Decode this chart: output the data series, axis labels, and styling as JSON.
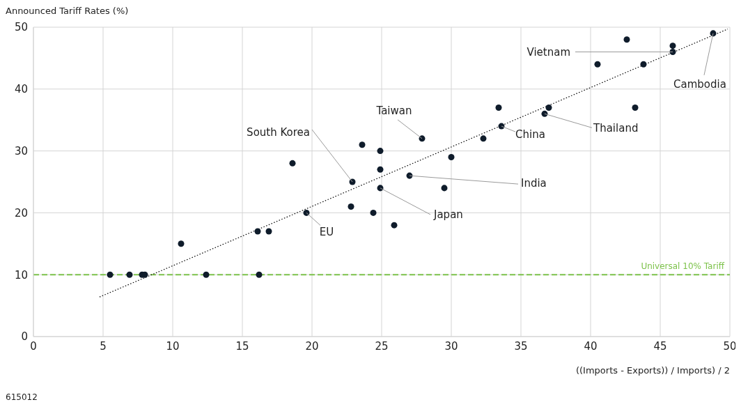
{
  "chart_data": {
    "type": "scatter",
    "title": "Announced Tariff Rates (%)",
    "xlabel": "((Imports - Exports)) / Imports) / 2",
    "xlim": [
      0,
      50
    ],
    "xticks": [
      0,
      5,
      10,
      15,
      20,
      25,
      30,
      35,
      40,
      45,
      50
    ],
    "ylim": [
      0,
      50
    ],
    "yticks": [
      0,
      10,
      20,
      30,
      40,
      50
    ],
    "grid": true,
    "marker": "circle",
    "series": [
      {
        "color": "#0f1c2b",
        "x": [
          5.5,
          6.9,
          7.8,
          8,
          10.6,
          12.4,
          16.1,
          16.9,
          16.2,
          18.6,
          19.6,
          22.8,
          22.9,
          23.6,
          24.4,
          24.9,
          24.9,
          24.9,
          25.9,
          27,
          27.9,
          29.5,
          30,
          32.3,
          33.4,
          33.6,
          36.7,
          37,
          40.5,
          42.6,
          43.2,
          43.8,
          45.9,
          45.9,
          48.8
        ],
        "values": [
          10,
          10,
          10,
          10,
          15,
          10,
          17,
          17,
          10,
          28,
          20,
          21,
          25,
          31,
          20,
          30,
          27,
          24,
          18,
          26,
          32,
          24,
          29,
          32,
          37,
          34,
          36,
          37,
          44,
          48,
          37,
          44,
          47,
          46,
          49
        ]
      },
      {
        "type": "line",
        "color": "#000000",
        "line_style": "dotted",
        "marker": "none",
        "x": [
          4.75,
          49.85
        ],
        "values": [
          6.4,
          49.7
        ]
      }
    ],
    "ref_lines": [
      {
        "axis": "y",
        "value": 10,
        "label": "Universal 10% Tariff",
        "color": "#7dc24b",
        "line_style": "dashed"
      }
    ],
    "annotations": [
      {
        "text": "Vietnam",
        "x": 45.9,
        "y": 46
      },
      {
        "text": "Cambodia",
        "x": 48.8,
        "y": 49
      },
      {
        "text": "Taiwan",
        "x": 27.9,
        "y": 32
      },
      {
        "text": "South Korea",
        "x": 22.9,
        "y": 25
      },
      {
        "text": "China",
        "x": 33.6,
        "y": 34
      },
      {
        "text": "Thailand",
        "x": 36.7,
        "y": 36
      },
      {
        "text": "India",
        "x": 27,
        "y": 26
      },
      {
        "text": "Japan",
        "x": 24.9,
        "y": 24
      },
      {
        "text": "EU",
        "x": 19.6,
        "y": 20
      },
      "615012"
    ]
  }
}
